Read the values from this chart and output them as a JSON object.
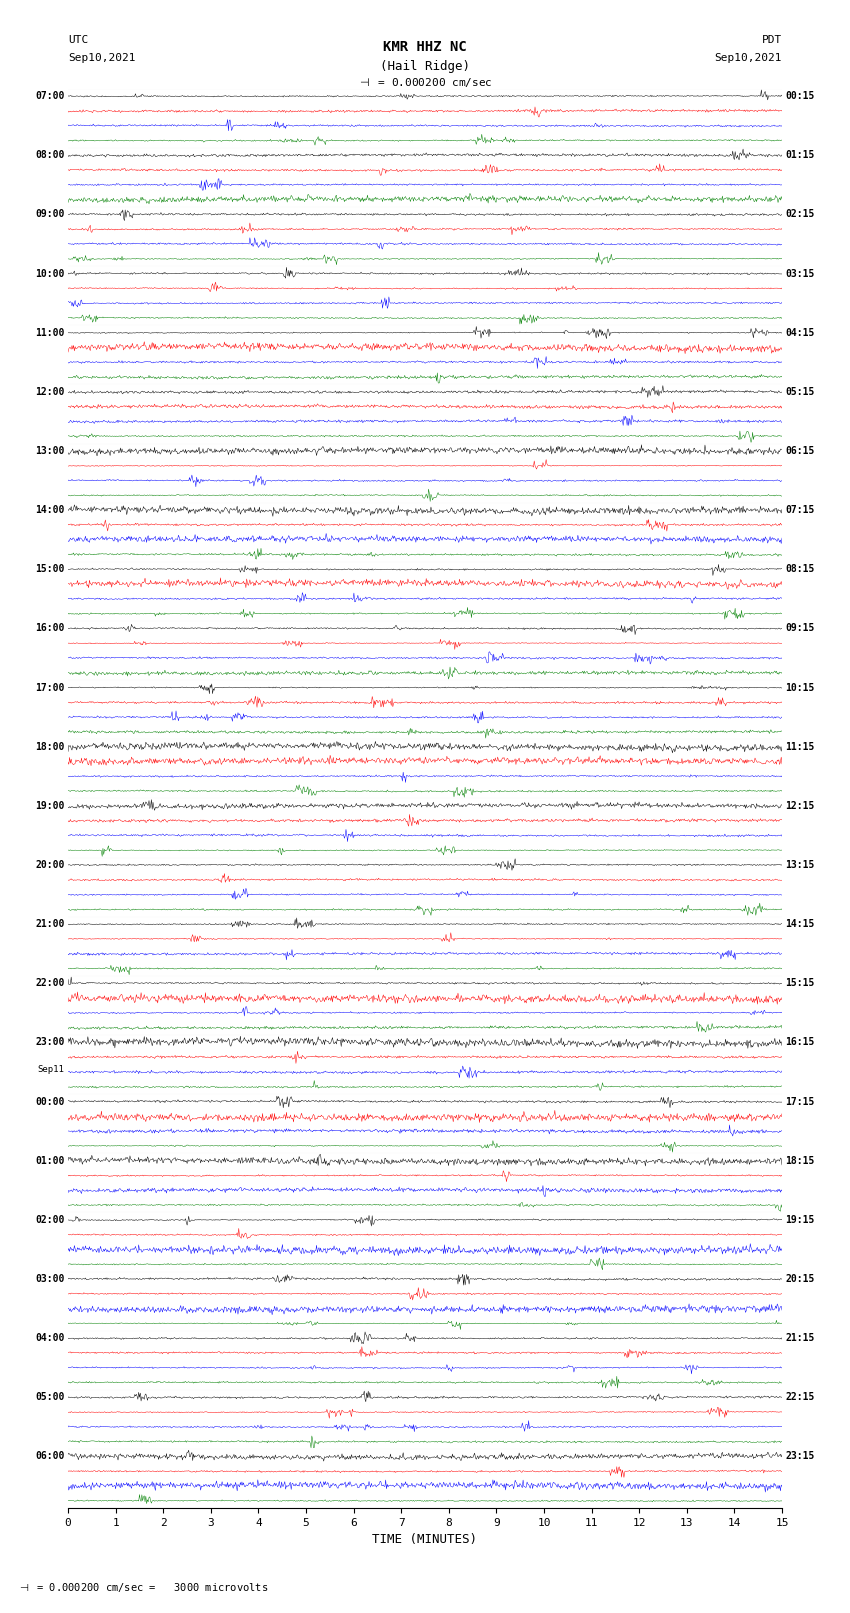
{
  "title_line1": "KMR HHZ NC",
  "title_line2": "(Hail Ridge)",
  "scale_label": "= 0.000200 cm/sec",
  "scale_label2": "= 0.000200 cm/sec =   3000 microvolts",
  "left_label_top1": "UTC",
  "left_label_top2": "Sep10,2021",
  "right_label_top1": "PDT",
  "right_label_top2": "Sep10,2021",
  "xlabel": "TIME (MINUTES)",
  "x_min": 0,
  "x_max": 15,
  "x_ticks": [
    0,
    1,
    2,
    3,
    4,
    5,
    6,
    7,
    8,
    9,
    10,
    11,
    12,
    13,
    14,
    15
  ],
  "background_color": "#ffffff",
  "trace_colors": [
    "black",
    "red",
    "blue",
    "green"
  ],
  "n_rows": 46,
  "utc_times": [
    "07:00",
    "",
    "",
    "",
    "08:00",
    "",
    "",
    "",
    "09:00",
    "",
    "",
    "",
    "10:00",
    "",
    "",
    "",
    "11:00",
    "",
    "",
    "",
    "12:00",
    "",
    "",
    "",
    "13:00",
    "",
    "",
    "",
    "14:00",
    "",
    "",
    "",
    "15:00",
    "",
    "",
    "",
    "16:00",
    "",
    "",
    "",
    "17:00",
    "",
    "",
    "",
    "18:00",
    "",
    "",
    "",
    "19:00",
    "",
    "",
    "",
    "20:00",
    "",
    "",
    "",
    "21:00",
    "",
    "",
    "",
    "22:00",
    "",
    "",
    "",
    "23:00",
    "",
    "",
    "",
    "Sep11",
    "00:00",
    "",
    "",
    "01:00",
    "",
    "",
    "",
    "02:00",
    "",
    "",
    "",
    "03:00",
    "",
    "",
    "",
    "04:00",
    "",
    "",
    "",
    "05:00",
    "",
    "",
    "",
    "06:00",
    "",
    ""
  ],
  "pdt_times": [
    "00:15",
    "",
    "",
    "",
    "01:15",
    "",
    "",
    "",
    "02:15",
    "",
    "",
    "",
    "03:15",
    "",
    "",
    "",
    "04:15",
    "",
    "",
    "",
    "05:15",
    "",
    "",
    "",
    "06:15",
    "",
    "",
    "",
    "07:15",
    "",
    "",
    "",
    "08:15",
    "",
    "",
    "",
    "09:15",
    "",
    "",
    "",
    "10:15",
    "",
    "",
    "",
    "11:15",
    "",
    "",
    "",
    "12:15",
    "",
    "",
    "",
    "13:15",
    "",
    "",
    "",
    "14:15",
    "",
    "",
    "",
    "15:15",
    "",
    "",
    "",
    "16:15",
    "",
    "",
    "",
    "17:15",
    "",
    "",
    "",
    "18:15",
    "",
    "",
    "",
    "19:15",
    "",
    "",
    "",
    "20:15",
    "",
    "",
    "",
    "21:15",
    "",
    "",
    "",
    "22:15",
    "",
    "",
    "",
    "23:15",
    "",
    ""
  ],
  "rows_per_hour": 4,
  "traces_per_row": 4,
  "total_trace_rows": 184,
  "fig_width": 8.5,
  "fig_height": 16.13,
  "dpi": 100,
  "noise_scale": 0.3,
  "occasional_spike_prob": 0.002,
  "spike_scale": 1.5
}
